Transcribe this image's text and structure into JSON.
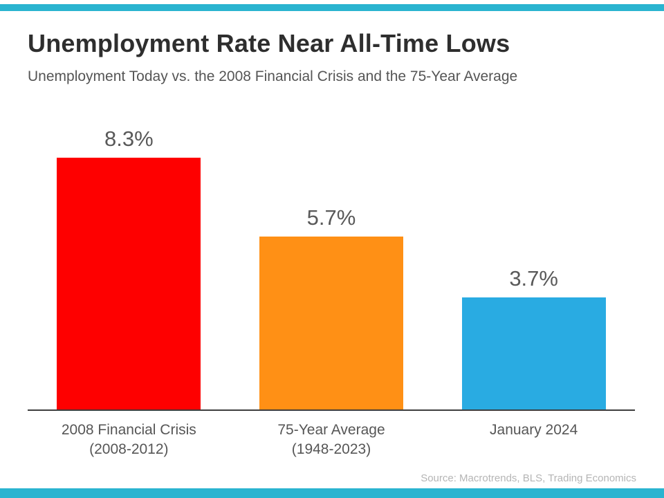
{
  "page": {
    "accent_color": "#2ab4d0"
  },
  "chart_data": {
    "type": "bar",
    "title": "Unemployment Rate Near All-Time Lows",
    "subtitle": "Unemployment Today vs. the 2008 Financial Crisis and the 75-Year Average",
    "categories": [
      "2008 Financial Crisis (2008-2012)",
      "75-Year Average (1948-2023)",
      "January 2024"
    ],
    "values": [
      8.3,
      5.7,
      3.7
    ],
    "value_labels": [
      "8.3%",
      "5.7%",
      "3.7%"
    ],
    "bar_colors": [
      "#fe0000",
      "#ff9015",
      "#29abe2"
    ],
    "ylim": [
      0,
      9.9
    ],
    "grid": false,
    "legend": "none",
    "xlabel": "",
    "ylabel": "",
    "bars": [
      {
        "value_label": "8.3%",
        "label_line1": "2008 Financial Crisis",
        "label_line2": "(2008-2012)"
      },
      {
        "value_label": "5.7%",
        "label_line1": "75-Year Average",
        "label_line2": "(1948-2023)"
      },
      {
        "value_label": "3.7%",
        "label_line1": "January 2024",
        "label_line2": ""
      }
    ],
    "source": "Source: Macrotrends, BLS, Trading Economics"
  }
}
